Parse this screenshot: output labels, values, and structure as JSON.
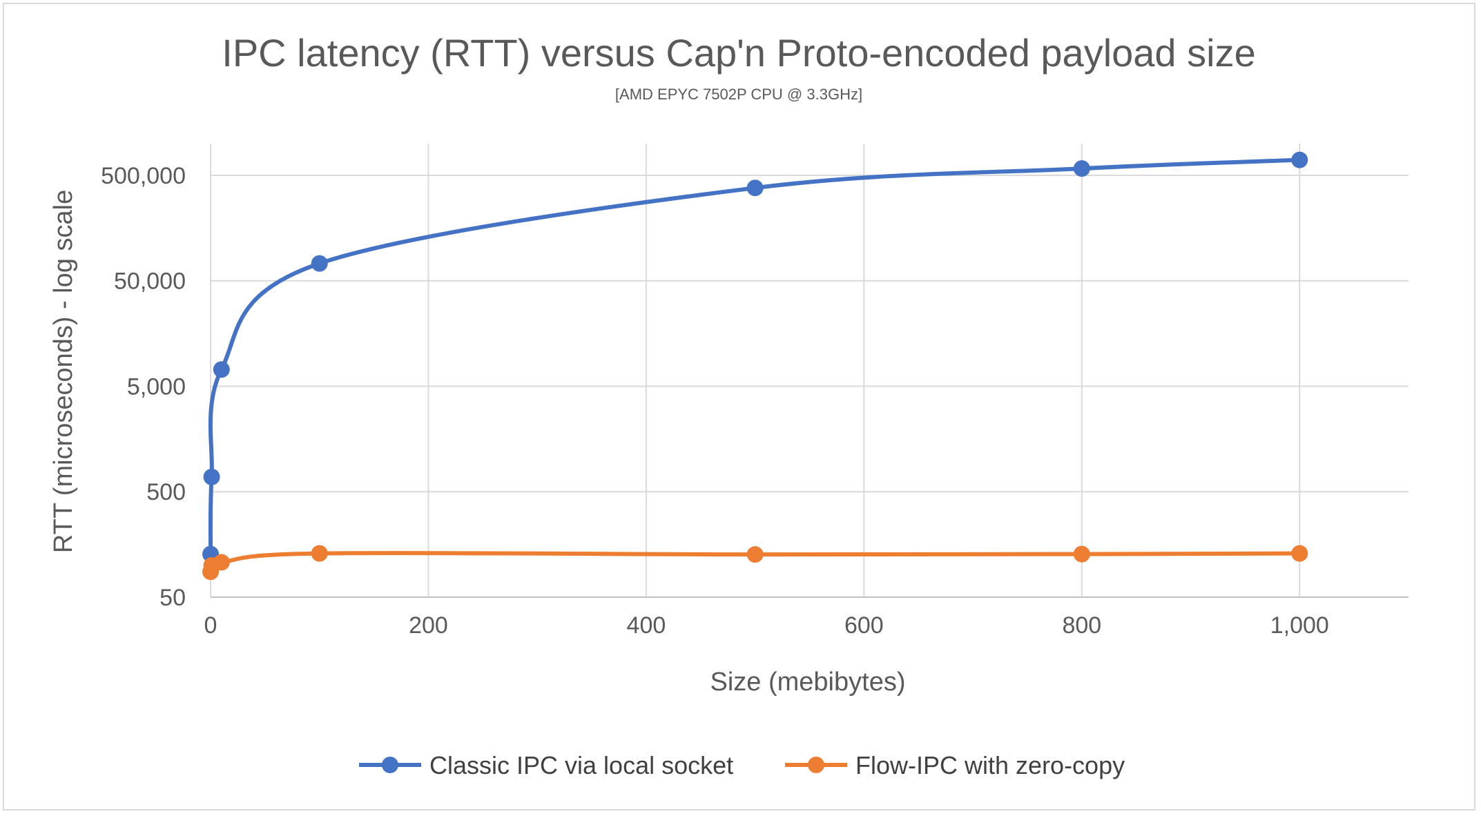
{
  "chart_data": {
    "type": "line",
    "title": "IPC latency (RTT) versus Cap'n Proto-encoded payload size",
    "subtitle": "[AMD EPYC 7502P CPU @ 3.3GHz]",
    "xlabel": "Size (mebibytes)",
    "ylabel": "RTT (microseconds) - log scale",
    "xlim": [
      0,
      1100
    ],
    "ylim": [
      50,
      1000000
    ],
    "yscale": "log",
    "x_ticks": [
      0,
      200,
      400,
      600,
      800,
      1000
    ],
    "x_tick_labels": [
      "0",
      "200",
      "400",
      "600",
      "800",
      "1,000"
    ],
    "y_ticks": [
      50,
      500,
      5000,
      50000,
      500000
    ],
    "y_tick_labels": [
      "50",
      "500",
      "5,000",
      "50,000",
      "500,000"
    ],
    "grid": true,
    "legend_position": "bottom",
    "series": [
      {
        "name": "Classic IPC via local socket",
        "color": "#4472c4",
        "smooth": true,
        "x": [
          0.0001,
          1,
          10,
          100,
          500,
          800,
          1000
        ],
        "y": [
          128,
          690,
          7200,
          73000,
          380000,
          580000,
          700000
        ]
      },
      {
        "name": "Flow-IPC with zero-copy",
        "color": "#ed7d31",
        "smooth": true,
        "x": [
          0.0001,
          1,
          10,
          100,
          500,
          800,
          1000
        ],
        "y": [
          87,
          100,
          107,
          130,
          127,
          128,
          130
        ]
      }
    ]
  }
}
